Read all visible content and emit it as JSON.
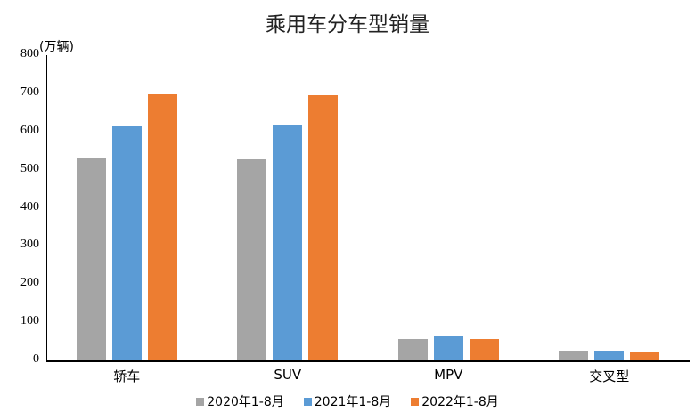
{
  "chart_data": {
    "type": "bar",
    "title": "乘用车分车型销量",
    "ylabel": "(万辆)",
    "xlabel": "",
    "ylim": [
      0,
      800
    ],
    "yticks": [
      0,
      100,
      200,
      300,
      400,
      500,
      600,
      700,
      800
    ],
    "grid": false,
    "legend_position": "bottom",
    "categories": [
      "轿车",
      "SUV",
      "MPV",
      "交叉型"
    ],
    "series": [
      {
        "name": "2020年1-8月",
        "color": "#a5a5a5",
        "values": [
          529,
          527,
          56,
          23
        ]
      },
      {
        "name": "2021年1-8月",
        "color": "#5b9bd5",
        "values": [
          613,
          615,
          63,
          26
        ]
      },
      {
        "name": "2022年1-8月",
        "color": "#ed7d31",
        "values": [
          697,
          695,
          56,
          21
        ]
      }
    ]
  }
}
